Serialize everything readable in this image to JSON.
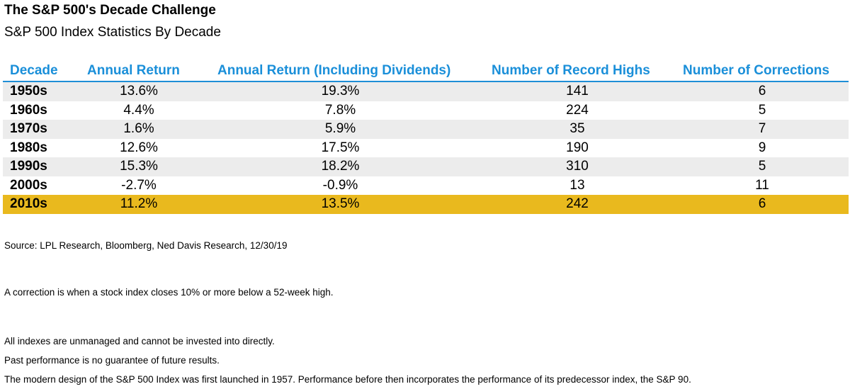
{
  "title": "The S&P 500's Decade Challenge",
  "subtitle": "S&P 500 Index Statistics By Decade",
  "chart_data": {
    "type": "table",
    "columns": [
      "Decade",
      "Annual Return",
      "Annual Return (Including Dividends)",
      "Number of Record Highs",
      "Number of Corrections"
    ],
    "rows": [
      [
        "1950s",
        "13.6%",
        "19.3%",
        "141",
        "6"
      ],
      [
        "1960s",
        "4.4%",
        "7.8%",
        "224",
        "5"
      ],
      [
        "1970s",
        "1.6%",
        "5.9%",
        "35",
        "7"
      ],
      [
        "1980s",
        "12.6%",
        "17.5%",
        "190",
        "9"
      ],
      [
        "1990s",
        "15.3%",
        "18.2%",
        "310",
        "5"
      ],
      [
        "2000s",
        "-2.7%",
        "-0.9%",
        "13",
        "11"
      ],
      [
        "2010s",
        "11.2%",
        "13.5%",
        "242",
        "6"
      ]
    ],
    "highlighted_row": "2010s"
  },
  "colors": {
    "header_text": "#1a8fd9",
    "header_rule": "#1f8ed6",
    "alt_row": "#ececec",
    "highlight_row": "#e9b91e"
  },
  "notes": [
    "Source: LPL Research, Bloomberg, Ned Davis Research, 12/30/19",
    "A correction is when a stock index closes 10% or more below a 52-week high.",
    "All indexes are unmanaged and cannot be invested into directly.",
    "Past performance is no guarantee of future results.",
    "The modern design of the S&P 500 Index was first launched in 1957. Performance before then incorporates the performance of its predecessor index, the S&P 90."
  ]
}
